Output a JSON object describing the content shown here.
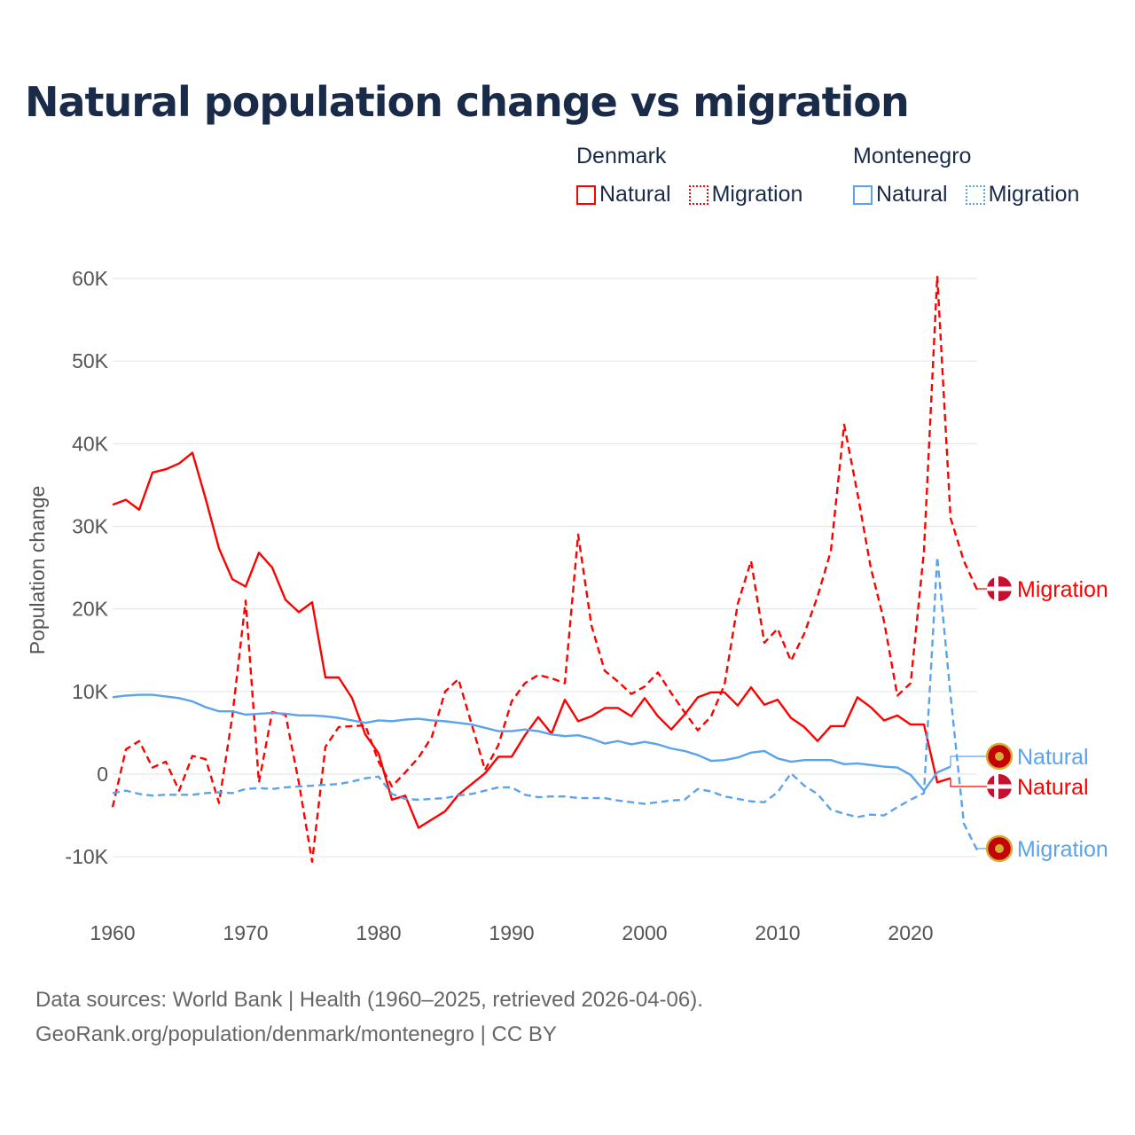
{
  "title": "Natural population change vs migration",
  "legend": {
    "groups": [
      {
        "name": "Denmark",
        "color": "#ff0000",
        "items": [
          "Natural",
          "Migration"
        ]
      },
      {
        "name": "Montenegro",
        "color": "#5ba3ea",
        "items": [
          "Natural",
          "Migration"
        ]
      }
    ]
  },
  "footer": {
    "line1": "Data sources: World Bank | Health (1960–2025, retrieved 2026-04-06).",
    "line2": "GeoRank.org/population/denmark/montenegro | CC BY"
  },
  "chart_data": {
    "type": "line",
    "title": "Natural population change vs migration",
    "xlabel": "",
    "ylabel": "Population change",
    "xlim": [
      1960,
      2025
    ],
    "ylim": [
      -10000,
      60000
    ],
    "grid": true,
    "legend_placement": "top-right",
    "x_ticks": [
      1960,
      1970,
      1980,
      1990,
      2000,
      2010,
      2020
    ],
    "x_tick_labels": [
      "1960",
      "1970",
      "1980",
      "1990",
      "2000",
      "2010",
      "2020"
    ],
    "y_ticks": [
      -10000,
      0,
      10000,
      20000,
      30000,
      40000,
      50000,
      60000
    ],
    "y_tick_labels": [
      "-10K",
      "0",
      "10K",
      "20K",
      "30K",
      "40K",
      "50K",
      "60K"
    ],
    "start_year": 1960,
    "series": [
      {
        "name": "Denmark Natural",
        "end_label": "Natural",
        "country": "Denmark",
        "color": "#ff0000",
        "dash": false,
        "values": [
          32600,
          33200,
          32000,
          36500,
          36900,
          37600,
          38900,
          33300,
          27300,
          23600,
          22700,
          26800,
          25000,
          21100,
          19600,
          20800,
          11700,
          11700,
          9200,
          4800,
          2500,
          -3100,
          -2600,
          -6500,
          -5500,
          -4500,
          -2500,
          -1200,
          100,
          2100,
          2100,
          4700,
          6900,
          4900,
          9000,
          6400,
          7000,
          8000,
          8000,
          7000,
          9200,
          7000,
          5400,
          7200,
          9300,
          9900,
          9900,
          8300,
          10500,
          8400,
          9000,
          6800,
          5700,
          4000,
          5800,
          5800,
          9300,
          8100,
          6500,
          7100,
          6000,
          6000,
          -1000,
          -500
        ]
      },
      {
        "name": "Denmark Migration",
        "end_label": "Migration",
        "country": "Denmark",
        "color": "#ff0000",
        "dash": true,
        "values": [
          -4000,
          3000,
          4000,
          800,
          1500,
          -2000,
          2200,
          1800,
          -3500,
          7000,
          21000,
          -1000,
          7500,
          7200,
          -1000,
          -10600,
          3300,
          5700,
          5800,
          5900,
          1500,
          -1500,
          200,
          2000,
          4500,
          10000,
          11500,
          6000,
          500,
          3500,
          8800,
          11000,
          12000,
          11600,
          11000,
          29000,
          18000,
          12500,
          11200,
          9700,
          10600,
          12300,
          9800,
          7500,
          5300,
          7000,
          10800,
          20600,
          25800,
          15900,
          17600,
          13700,
          17000,
          21500,
          27000,
          42300,
          34000,
          25000,
          18500,
          9500,
          11000,
          27000,
          60300,
          31000,
          25800,
          22300
        ]
      },
      {
        "name": "Montenegro Natural",
        "end_label": "Natural",
        "country": "Montenegro",
        "color": "#5ba3ea",
        "dash": false,
        "values": [
          9300,
          9500,
          9600,
          9600,
          9400,
          9200,
          8800,
          8100,
          7600,
          7600,
          7200,
          7300,
          7400,
          7300,
          7100,
          7100,
          7000,
          6800,
          6500,
          6200,
          6500,
          6400,
          6600,
          6700,
          6500,
          6400,
          6200,
          6000,
          5600,
          5200,
          5200,
          5400,
          5200,
          4800,
          4600,
          4700,
          4300,
          3700,
          4000,
          3600,
          3900,
          3600,
          3100,
          2800,
          2300,
          1600,
          1700,
          2000,
          2600,
          2800,
          1900,
          1500,
          1700,
          1700,
          1700,
          1200,
          1300,
          1100,
          900,
          800,
          -100,
          -2000,
          200,
          900
        ]
      },
      {
        "name": "Montenegro Migration",
        "end_label": "Migration",
        "country": "Montenegro",
        "color": "#5ba3ea",
        "dash": true,
        "values": [
          -2300,
          -2000,
          -2400,
          -2600,
          -2500,
          -2500,
          -2500,
          -2300,
          -2200,
          -2300,
          -1800,
          -1700,
          -1800,
          -1600,
          -1500,
          -1400,
          -1300,
          -1200,
          -900,
          -500,
          -300,
          -2400,
          -3000,
          -3100,
          -3000,
          -2900,
          -2600,
          -2400,
          -2000,
          -1600,
          -1600,
          -2500,
          -2800,
          -2700,
          -2700,
          -2900,
          -2900,
          -2900,
          -3200,
          -3400,
          -3600,
          -3400,
          -3200,
          -3100,
          -1800,
          -2100,
          -2700,
          -3000,
          -3300,
          -3400,
          -2200,
          100,
          -1400,
          -2400,
          -4300,
          -4800,
          -5200,
          -4900,
          -5000,
          -4000,
          -3100,
          -2300,
          26300,
          9500,
          -6000,
          -9200
        ]
      }
    ]
  }
}
